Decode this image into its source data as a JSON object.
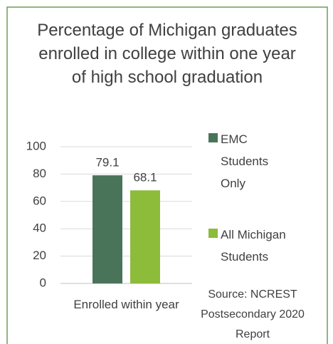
{
  "chart_data": {
    "type": "bar",
    "title": "Percentage of Michigan graduates enrolled in college within one year of high school graduation",
    "categories": [
      "Enrolled within year"
    ],
    "series": [
      {
        "name": "EMC Students Only",
        "color": "#4a7459",
        "values": [
          79.1
        ]
      },
      {
        "name": "All Michigan Students",
        "color": "#8dbb3a",
        "values": [
          68.1
        ]
      }
    ],
    "ylim": [
      0,
      100
    ],
    "yticks": [
      0,
      20,
      40,
      60,
      80,
      100
    ],
    "grid": true,
    "legend": "right",
    "annotation": "Source: NCREST Postsecondary 2020 Report"
  }
}
